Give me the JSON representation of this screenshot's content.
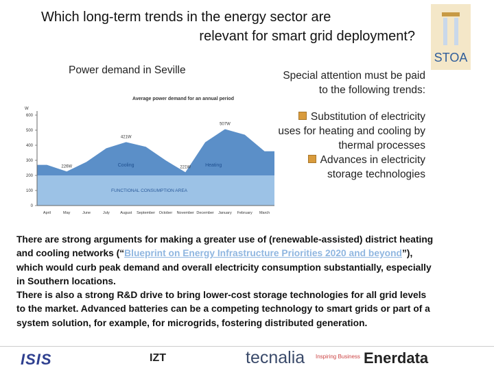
{
  "header": {
    "title_line1": "Which long-term trends in the energy sector are",
    "title_line2": "relevant for smart grid deployment?",
    "logo": "STOA"
  },
  "figure": {
    "caption": "Power demand in Seville",
    "title": "Average power demand for an annual period",
    "y_unit": "W",
    "categories": [
      "April",
      "May",
      "June",
      "July",
      "August",
      "September",
      "October",
      "November",
      "December",
      "January",
      "February",
      "March"
    ],
    "values": [
      270,
      226,
      290,
      380,
      421,
      390,
      300,
      221,
      420,
      507,
      470,
      360
    ],
    "value_labels": [
      null,
      "226W",
      null,
      null,
      "421W",
      null,
      null,
      "221W",
      null,
      "507W",
      null,
      null
    ],
    "ylim": [
      0,
      600
    ],
    "yticks": [
      0,
      100,
      200,
      300,
      400,
      500,
      600
    ],
    "functional_level": 200,
    "functional_label": "FUNCTIONAL CONSUMPTION AREA",
    "cooling_label": "Cooling",
    "heating_label": "Heating",
    "color": "#5b8fc8",
    "base_color": "#9cc2e6"
  },
  "side": {
    "intro": "Special attention must be paid to the following trends:",
    "bullets": [
      "Substitution of electricity uses for heating and cooling by thermal processes",
      "Advances in electricity storage technologies"
    ]
  },
  "body": {
    "paragraph1": {
      "before": "There are strong arguments for making a greater use of (renewable-assisted) district heating and cooling networks (“",
      "link": "Blueprint on Energy Infrastructure Priorities 2020 and beyond",
      "after": "”), which would curb peak demand and overall electricity consumption substantially, especially in Southern locations."
    },
    "paragraph2": "There is also a strong R&D drive to bring lower-cost storage technologies for all grid levels to the market. Advanced batteries can be a competing technology to smart grids or part of a system solution, for example, for microgrids, fostering distributed generation."
  },
  "footer": {
    "logos": [
      "ISIS",
      "IZT",
      "tecnalia",
      "Inspiring Business",
      "Enerdata"
    ]
  }
}
